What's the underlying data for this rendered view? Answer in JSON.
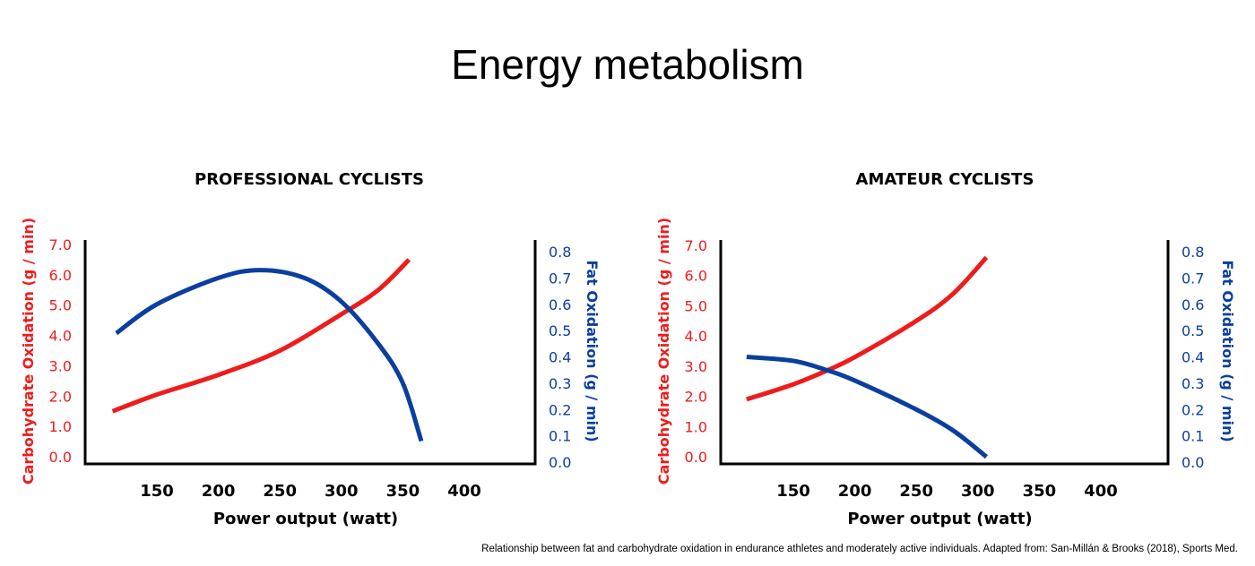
{
  "title": "Energy metabolism",
  "caption": "Relationship between fat and carbohydrate oxidation in endurance athletes and moderately active individuals. Adapted from: San-Millán & Brooks (2018), Sports Med.",
  "colors": {
    "carbohydrate": "#ee1c1c",
    "fat": "#0a3fa0",
    "axis": "#000000"
  },
  "chart_data": [
    {
      "type": "line",
      "title": "PROFESSIONAL CYCLISTS",
      "xlabel": "Power output (watt)",
      "ylabel": "Carbohydrate Oxidation (g / min)",
      "y2label": "Fat Oxidation (g / min)",
      "xticks": [
        "150",
        "200",
        "250",
        "300",
        "350",
        "400"
      ],
      "yticks": [
        "0.0",
        "1.0",
        "2.0",
        "3.0",
        "4.0",
        "5.0",
        "6.0",
        "7.0"
      ],
      "y2ticks": [
        "0.0",
        "0.1",
        "0.2",
        "0.3",
        "0.4",
        "0.5",
        "0.6",
        "0.7",
        "0.8"
      ],
      "ylim": [
        0,
        7
      ],
      "y2lim": [
        0,
        0.8
      ],
      "grid": false,
      "series": [
        {
          "axis": "left",
          "color": "#ee1c1c",
          "x": [
            114,
            150,
            200,
            250,
            300,
            330,
            355
          ],
          "y": [
            1.5,
            2.05,
            2.7,
            3.5,
            4.7,
            5.5,
            6.5
          ]
        },
        {
          "axis": "right",
          "color": "#0a3fa0",
          "x": [
            117,
            150,
            200,
            234,
            270,
            300,
            330,
            350,
            365
          ],
          "y": [
            0.49,
            0.6,
            0.7,
            0.73,
            0.7,
            0.61,
            0.45,
            0.3,
            0.08
          ]
        }
      ]
    },
    {
      "type": "line",
      "title": "AMATEUR CYCLISTS",
      "xlabel": "Power output (watt)",
      "ylabel": "Carbohydrate Oxidation (g / min)",
      "y2label": "Fat Oxidation (g / min)",
      "xticks": [
        "150",
        "200",
        "250",
        "300",
        "350",
        "400"
      ],
      "yticks": [
        "0.0",
        "1.0",
        "2.0",
        "3.0",
        "4.0",
        "5.0",
        "6.0",
        "7.0"
      ],
      "y2ticks": [
        "0.0",
        "0.1",
        "0.2",
        "0.3",
        "0.4",
        "0.5",
        "0.6",
        "0.7",
        "0.8"
      ],
      "ylim": [
        0,
        7
      ],
      "y2lim": [
        0,
        0.8
      ],
      "grid": false,
      "series": [
        {
          "axis": "left",
          "color": "#ee1c1c",
          "x": [
            112,
            150,
            177,
            200,
            250,
            280,
            307
          ],
          "y": [
            1.9,
            2.4,
            2.85,
            3.3,
            4.5,
            5.4,
            6.6
          ]
        },
        {
          "axis": "right",
          "color": "#0a3fa0",
          "x": [
            112,
            150,
            177,
            200,
            250,
            280,
            307
          ],
          "y": [
            0.4,
            0.385,
            0.35,
            0.31,
            0.2,
            0.12,
            0.02
          ]
        }
      ]
    }
  ]
}
